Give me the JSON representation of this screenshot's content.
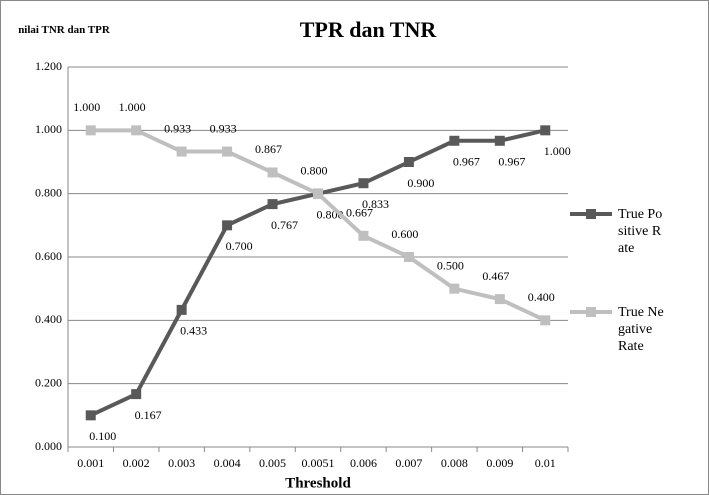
{
  "chart_data": {
    "type": "line",
    "title": "TPR dan TNR",
    "y_label": "nilai TNR dan TPR",
    "x_label": "Threshold",
    "categories": [
      "0.001",
      "0.002",
      "0.003",
      "0.004",
      "0.005",
      "0.0051",
      "0.006",
      "0.007",
      "0.008",
      "0.009",
      "0.01"
    ],
    "series": [
      {
        "name": "True Positive Rate",
        "color": "#595959",
        "values": [
          0.1,
          0.167,
          0.433,
          0.7,
          0.767,
          0.8,
          0.833,
          0.9,
          0.967,
          0.967,
          1.0
        ],
        "value_labels": [
          "0.100",
          "0.167",
          "0.433",
          "0.700",
          "0.767",
          "0.800",
          "0.833",
          "0.900",
          "0.967",
          "0.967",
          "1.000"
        ]
      },
      {
        "name": "True Negative Rate",
        "color": "#bfbfbf",
        "values": [
          1.0,
          1.0,
          0.933,
          0.933,
          0.867,
          0.8,
          0.667,
          0.6,
          0.5,
          0.467,
          0.4
        ],
        "value_labels": [
          "1.000",
          "1.000",
          "0.933",
          "0.933",
          "0.867",
          "0.800",
          "0.667",
          "0.600",
          "0.500",
          "0.467",
          "0.400"
        ]
      }
    ],
    "ylim": [
      0,
      1.2
    ],
    "yticks": [
      {
        "value": 0,
        "label": "0.000"
      },
      {
        "value": 0.2,
        "label": "0.200"
      },
      {
        "value": 0.4,
        "label": "0.400"
      },
      {
        "value": 0.6,
        "label": "0.600"
      },
      {
        "value": 0.8,
        "label": "0.800"
      },
      {
        "value": 1.0,
        "label": "1.000"
      },
      {
        "value": 1.2,
        "label": "1.200"
      }
    ],
    "grid": true,
    "legend": "right"
  }
}
